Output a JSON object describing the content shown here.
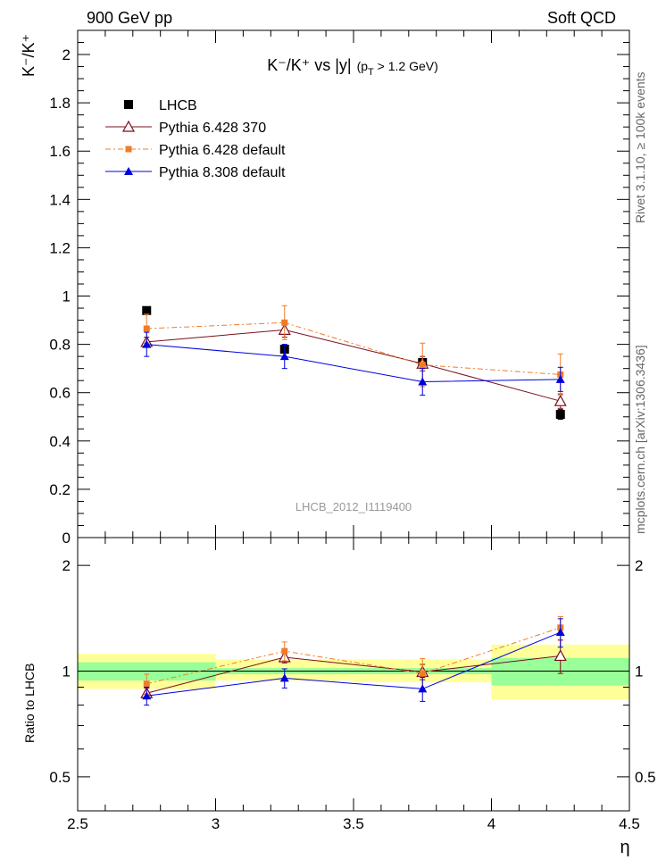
{
  "header": {
    "left": "900 GeV pp",
    "right": "Soft QCD"
  },
  "side_labels": {
    "rivet": "Rivet 3.1.10, ≥ 100k events",
    "mcplots": "mcplots.cern.ch [arXiv:1306.3436]"
  },
  "analysis_id": "LHCB_2012_I1119400",
  "chart_data": [
    {
      "type": "scatter",
      "panel": "main",
      "title": "K⁻/K⁺ vs |y| (p_T > 1.2 GeV)",
      "title_parts": {
        "main": "K⁻/K⁺ vs |y|",
        "sub": "(p",
        "subsub": "T",
        "tail": " > 1.2 GeV)"
      },
      "ylabel": "K⁻/K⁺",
      "xlim": [
        2.5,
        4.5
      ],
      "ylim": [
        0,
        2.1
      ],
      "y_ticks": [
        0,
        0.2,
        0.4,
        0.6,
        0.8,
        1,
        1.2,
        1.4,
        1.6,
        1.8,
        2
      ],
      "y_tick_labels": [
        "0",
        "0.2",
        "0.4",
        "0.6",
        "0.8",
        "1",
        "1.2",
        "1.4",
        "1.6",
        "1.8",
        "2"
      ],
      "x": [
        2.75,
        3.25,
        3.75,
        4.25
      ],
      "legend_position": "top-left",
      "series": [
        {
          "name": "LHCB",
          "color": "#000000",
          "marker": "square",
          "line": "none",
          "values": [
            0.94,
            0.78,
            0.725,
            0.51
          ],
          "errors": [
            0.01,
            0.01,
            0.01,
            0.02
          ]
        },
        {
          "name": "Pythia 6.428 370",
          "color": "#7a0f1a",
          "marker": "open-triangle",
          "line": "solid",
          "values": [
            0.81,
            0.86,
            0.72,
            0.565
          ],
          "errors": [
            0.02,
            0.03,
            0.03,
            0.03
          ]
        },
        {
          "name": "Pythia 6.428 default",
          "color": "#f07c28",
          "marker": "small-square",
          "line": "dashdot",
          "values": [
            0.865,
            0.89,
            0.715,
            0.675
          ],
          "errors": [
            0.06,
            0.07,
            0.09,
            0.085
          ]
        },
        {
          "name": "Pythia 8.308 default",
          "color": "#0000dd",
          "marker": "triangle",
          "line": "solid",
          "values": [
            0.8,
            0.75,
            0.645,
            0.655
          ],
          "errors": [
            0.05,
            0.05,
            0.055,
            0.05
          ]
        }
      ]
    },
    {
      "type": "scatter",
      "panel": "ratio",
      "ylabel": "Ratio to LHCB",
      "xlabel": "η",
      "xlim": [
        2.5,
        4.5
      ],
      "ylim": [
        0.4,
        2.4
      ],
      "y_scale": "log",
      "y_ticks": [
        0.5,
        1,
        2
      ],
      "y_tick_labels": [
        "0.5",
        "1",
        "2"
      ],
      "x_ticks": [
        2.5,
        3,
        3.5,
        4,
        4.5
      ],
      "x_tick_labels": [
        "2.5",
        "3",
        "3.5",
        "4",
        "4.5"
      ],
      "x": [
        2.75,
        3.25,
        3.75,
        4.25
      ],
      "bins": [
        [
          2.5,
          3.0
        ],
        [
          3.0,
          3.5
        ],
        [
          3.5,
          4.0
        ],
        [
          4.0,
          4.5
        ]
      ],
      "band_inner": [
        [
          0.94,
          1.06
        ],
        [
          0.98,
          1.02
        ],
        [
          0.98,
          1.02
        ],
        [
          0.91,
          1.09
        ]
      ],
      "band_outer": [
        [
          0.89,
          1.12
        ],
        [
          0.94,
          1.08
        ],
        [
          0.93,
          1.08
        ],
        [
          0.83,
          1.19
        ]
      ],
      "series": [
        {
          "name": "Pythia 6.428 370",
          "color": "#7a0f1a",
          "marker": "open-triangle",
          "line": "solid",
          "values": [
            0.865,
            1.095,
            0.995,
            1.105
          ],
          "errors": [
            0.03,
            0.04,
            0.05,
            0.12
          ]
        },
        {
          "name": "Pythia 6.428 default",
          "color": "#f07c28",
          "marker": "small-square",
          "line": "dashdot",
          "values": [
            0.92,
            1.14,
            0.985,
            1.33
          ],
          "errors": [
            0.06,
            0.07,
            0.1,
            0.1
          ]
        },
        {
          "name": "Pythia 8.308 default",
          "color": "#0000dd",
          "marker": "triangle",
          "line": "solid",
          "values": [
            0.85,
            0.955,
            0.89,
            1.29
          ],
          "errors": [
            0.05,
            0.06,
            0.07,
            0.12
          ]
        }
      ]
    }
  ]
}
